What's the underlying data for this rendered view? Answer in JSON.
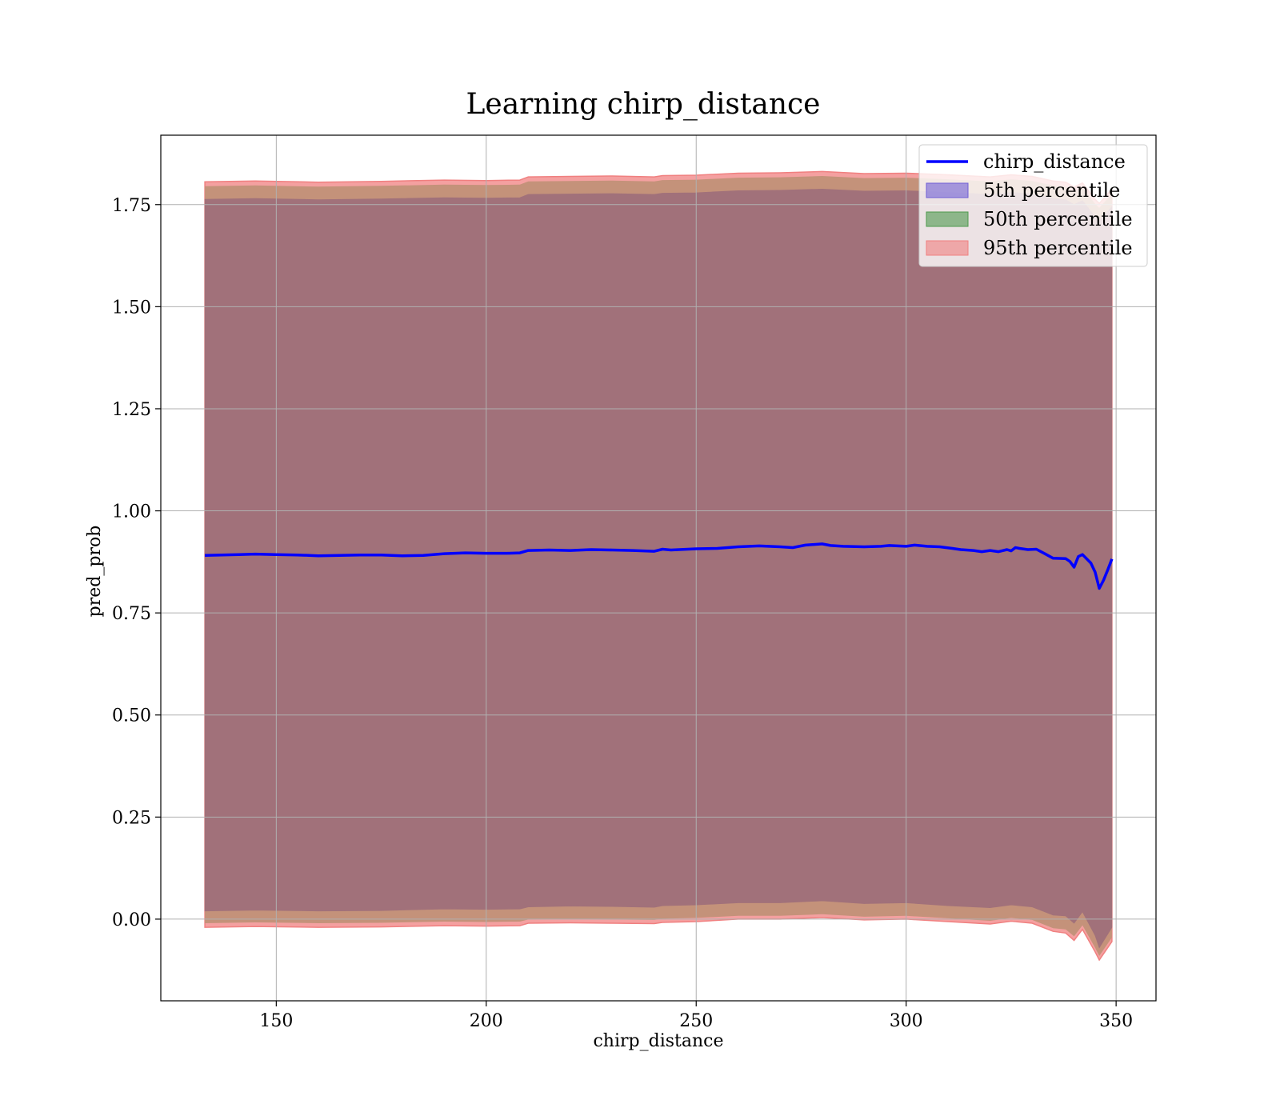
{
  "chart_data": {
    "type": "area",
    "title": "Learning chirp_distance",
    "xlabel": "chirp_distance",
    "ylabel": "pred_prob",
    "xlim": [
      122.5,
      359.5
    ],
    "ylim": [
      -0.2,
      1.92
    ],
    "xticks": [
      150,
      200,
      250,
      300,
      350
    ],
    "xtick_labels": [
      "150",
      "200",
      "250",
      "300",
      "350"
    ],
    "yticks": [
      0.0,
      0.25,
      0.5,
      0.75,
      1.0,
      1.25,
      1.5,
      1.75
    ],
    "ytick_labels": [
      "0.00",
      "0.25",
      "0.50",
      "0.75",
      "1.00",
      "1.25",
      "1.50",
      "1.75"
    ],
    "grid": true,
    "legend_position": "top-right",
    "colors": {
      "line": "#0000ff",
      "p5": "#6f5fd6",
      "p50": "#4e9a4e",
      "p95": "#f08080",
      "combined_fill": "#a1717a",
      "band_fill": "#c4927a"
    },
    "series": [
      {
        "name": "chirp_distance",
        "kind": "line",
        "x": [
          133,
          137,
          141,
          145,
          150,
          155,
          160,
          165,
          170,
          175,
          180,
          185,
          190,
          195,
          200,
          205,
          208,
          210,
          215,
          220,
          225,
          230,
          235,
          240,
          242,
          244,
          250,
          255,
          260,
          265,
          270,
          273,
          276,
          280,
          282,
          285,
          290,
          294,
          296,
          300,
          302,
          305,
          308,
          311,
          313,
          316,
          318,
          320,
          322,
          324,
          325,
          326,
          327,
          329,
          331,
          333,
          335,
          338,
          339,
          340,
          341,
          342,
          344,
          345,
          346,
          347,
          348,
          349
        ],
        "y": [
          0.891,
          0.892,
          0.893,
          0.894,
          0.893,
          0.892,
          0.89,
          0.891,
          0.892,
          0.892,
          0.89,
          0.891,
          0.895,
          0.897,
          0.896,
          0.896,
          0.897,
          0.903,
          0.904,
          0.903,
          0.905,
          0.904,
          0.903,
          0.901,
          0.906,
          0.904,
          0.907,
          0.908,
          0.912,
          0.914,
          0.912,
          0.91,
          0.916,
          0.919,
          0.915,
          0.913,
          0.912,
          0.913,
          0.915,
          0.913,
          0.916,
          0.913,
          0.912,
          0.908,
          0.905,
          0.903,
          0.9,
          0.903,
          0.9,
          0.905,
          0.902,
          0.91,
          0.908,
          0.905,
          0.906,
          0.895,
          0.884,
          0.883,
          0.876,
          0.862,
          0.888,
          0.893,
          0.872,
          0.85,
          0.81,
          0.83,
          0.855,
          0.882
        ]
      },
      {
        "name": "5th percentile",
        "kind": "band",
        "x": [
          133,
          145,
          160,
          175,
          190,
          200,
          208,
          210,
          220,
          230,
          240,
          242,
          250,
          260,
          270,
          280,
          290,
          300,
          310,
          320,
          325,
          330,
          335,
          338,
          340,
          342,
          345,
          346,
          349
        ],
        "lower": [
          0.02,
          0.022,
          0.02,
          0.021,
          0.025,
          0.024,
          0.025,
          0.03,
          0.032,
          0.031,
          0.029,
          0.033,
          0.035,
          0.04,
          0.04,
          0.045,
          0.038,
          0.04,
          0.033,
          0.028,
          0.035,
          0.03,
          0.01,
          0.008,
          -0.01,
          0.018,
          -0.04,
          -0.07,
          -0.02
        ],
        "upper": [
          1.763,
          1.765,
          1.762,
          1.764,
          1.767,
          1.766,
          1.767,
          1.775,
          1.776,
          1.777,
          1.775,
          1.778,
          1.779,
          1.784,
          1.785,
          1.788,
          1.783,
          1.784,
          1.78,
          1.775,
          1.78,
          1.776,
          1.765,
          1.762,
          1.75,
          1.76,
          1.72,
          1.71,
          1.745
        ]
      },
      {
        "name": "50th percentile",
        "kind": "band",
        "x": [
          133,
          145,
          160,
          175,
          190,
          200,
          208,
          210,
          220,
          230,
          240,
          242,
          250,
          260,
          270,
          280,
          290,
          300,
          310,
          320,
          325,
          330,
          335,
          338,
          340,
          342,
          345,
          346,
          349
        ],
        "lower": [
          -0.01,
          -0.008,
          -0.01,
          -0.009,
          -0.006,
          -0.007,
          -0.006,
          -0.001,
          0.0,
          -0.001,
          -0.002,
          0.001,
          0.003,
          0.008,
          0.008,
          0.012,
          0.006,
          0.008,
          0.002,
          -0.004,
          0.003,
          -0.002,
          -0.022,
          -0.025,
          -0.042,
          -0.015,
          -0.07,
          -0.09,
          -0.045
        ],
        "upper": [
          1.795,
          1.797,
          1.794,
          1.796,
          1.799,
          1.798,
          1.799,
          1.807,
          1.808,
          1.809,
          1.807,
          1.81,
          1.811,
          1.816,
          1.817,
          1.82,
          1.815,
          1.816,
          1.812,
          1.807,
          1.812,
          1.808,
          1.797,
          1.794,
          1.782,
          1.792,
          1.752,
          1.742,
          1.777
        ]
      },
      {
        "name": "95th percentile",
        "kind": "band",
        "x": [
          133,
          145,
          160,
          175,
          190,
          200,
          208,
          210,
          220,
          230,
          240,
          242,
          250,
          260,
          270,
          280,
          290,
          300,
          310,
          320,
          325,
          330,
          335,
          338,
          340,
          342,
          345,
          346,
          349
        ],
        "lower": [
          -0.02,
          -0.018,
          -0.02,
          -0.019,
          -0.016,
          -0.017,
          -0.016,
          -0.01,
          -0.009,
          -0.01,
          -0.011,
          -0.008,
          -0.006,
          0.0,
          0.0,
          0.004,
          -0.002,
          0.0,
          -0.006,
          -0.012,
          -0.005,
          -0.01,
          -0.03,
          -0.034,
          -0.052,
          -0.025,
          -0.08,
          -0.1,
          -0.055
        ],
        "upper": [
          1.806,
          1.808,
          1.805,
          1.807,
          1.81,
          1.809,
          1.81,
          1.818,
          1.819,
          1.82,
          1.818,
          1.821,
          1.822,
          1.827,
          1.828,
          1.831,
          1.826,
          1.827,
          1.823,
          1.818,
          1.823,
          1.819,
          1.808,
          1.805,
          1.793,
          1.803,
          1.763,
          1.753,
          1.788
        ]
      }
    ]
  }
}
